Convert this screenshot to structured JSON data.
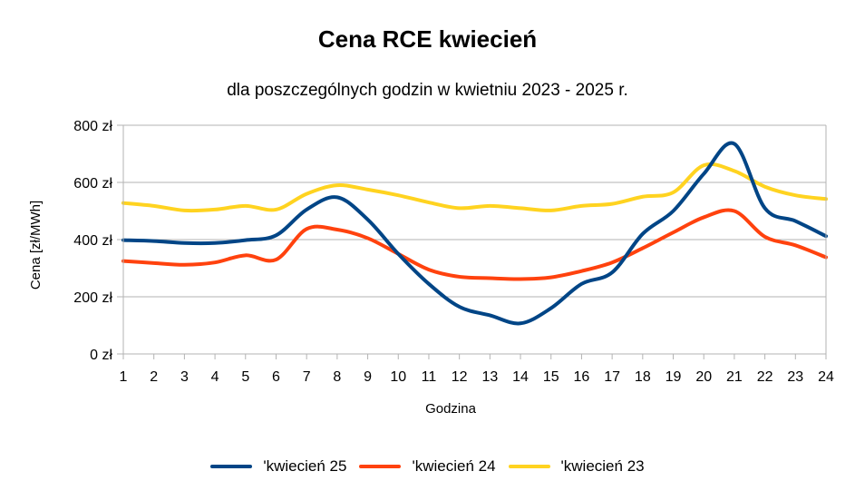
{
  "chart_data": {
    "type": "line",
    "title": "Cena RCE kwiecień",
    "subtitle": "dla poszczególnych godzin w kwietniu 2023 - 2025 r.",
    "xlabel": "Godzina",
    "ylabel": "Cena [zł/MWh]",
    "categories": [
      "1",
      "2",
      "3",
      "4",
      "5",
      "6",
      "7",
      "8",
      "9",
      "10",
      "11",
      "12",
      "13",
      "14",
      "15",
      "16",
      "17",
      "18",
      "19",
      "20",
      "21",
      "22",
      "23",
      "24"
    ],
    "x": [
      1,
      2,
      3,
      4,
      5,
      6,
      7,
      8,
      9,
      10,
      11,
      12,
      13,
      14,
      15,
      16,
      17,
      18,
      19,
      20,
      21,
      22,
      23,
      24
    ],
    "ylim": [
      0,
      800
    ],
    "ytick_labels": [
      "0 zł",
      "200 zł",
      "400 zł",
      "600 zł",
      "800 zł"
    ],
    "grid": true,
    "legend_position": "bottom",
    "series": [
      {
        "name": "'kwiecień 25",
        "color": "#004586",
        "values": [
          398,
          395,
          388,
          388,
          398,
          415,
          505,
          548,
          470,
          350,
          245,
          165,
          135,
          107,
          160,
          245,
          285,
          420,
          500,
          630,
          735,
          510,
          465,
          412
        ]
      },
      {
        "name": "'kwiecień 24",
        "color": "#ff420e",
        "values": [
          325,
          318,
          312,
          320,
          345,
          330,
          437,
          435,
          405,
          350,
          295,
          270,
          265,
          262,
          268,
          290,
          320,
          370,
          425,
          478,
          500,
          410,
          380,
          338
        ]
      },
      {
        "name": "'kwiecień 23",
        "color": "#ffd320",
        "values": [
          528,
          518,
          502,
          505,
          518,
          505,
          560,
          590,
          575,
          555,
          530,
          510,
          518,
          510,
          502,
          518,
          525,
          550,
          565,
          660,
          640,
          585,
          555,
          542
        ]
      }
    ]
  }
}
